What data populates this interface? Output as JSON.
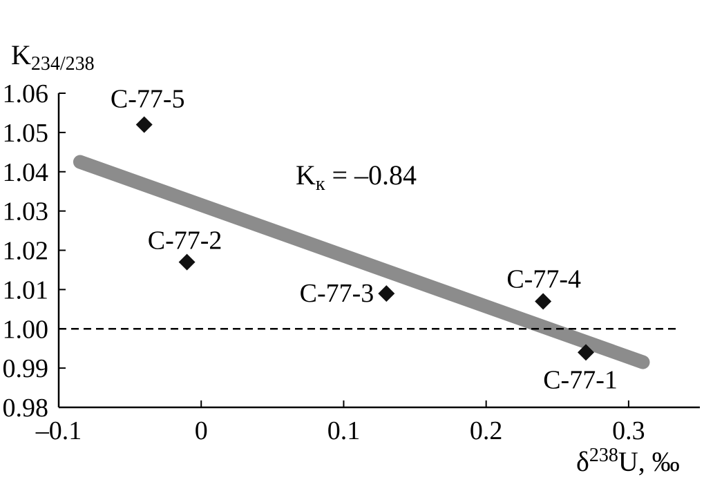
{
  "chart_data": {
    "type": "scatter",
    "title": "",
    "ylabel": {
      "main": "K",
      "sub": "234/238"
    },
    "xlabel": {
      "delta": "δ",
      "sup": "238",
      "rest": "U, ‰"
    },
    "xlim": [
      -0.1,
      0.35
    ],
    "ylim": [
      0.98,
      1.06
    ],
    "x_ticks": [
      -0.1,
      0,
      0.1,
      0.2,
      0.3
    ],
    "x_tick_labels": [
      "–0.1",
      "0",
      "0.1",
      "0.2",
      "0.3"
    ],
    "y_ticks": [
      0.98,
      0.99,
      1.0,
      1.01,
      1.02,
      1.03,
      1.04,
      1.05,
      1.06
    ],
    "y_tick_labels": [
      "0.98",
      "0.99",
      "1.00",
      "1.01",
      "1.02",
      "1.03",
      "1.04",
      "1.05",
      "1.06"
    ],
    "points": [
      {
        "label": "C-77-5",
        "x": -0.04,
        "y": 1.052
      },
      {
        "label": "C-77-2",
        "x": -0.01,
        "y": 1.017
      },
      {
        "label": "C-77-3",
        "x": 0.13,
        "y": 1.009
      },
      {
        "label": "C-77-4",
        "x": 0.24,
        "y": 1.007
      },
      {
        "label": "C-77-1",
        "x": 0.27,
        "y": 0.994
      }
    ],
    "trend_line": {
      "x": [
        -0.085,
        0.31
      ],
      "y": [
        1.0425,
        0.9915
      ],
      "color": "#8c8c8c"
    },
    "reference_line": {
      "y": 1.0,
      "style": "dashed"
    },
    "annotation": {
      "main": "K",
      "sub": "к",
      "rest": " = –0.84"
    },
    "grid": false,
    "legend": "none"
  }
}
